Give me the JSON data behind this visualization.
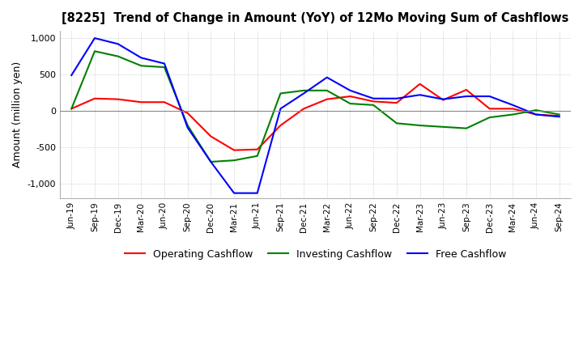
{
  "title": "[8225]  Trend of Change in Amount (YoY) of 12Mo Moving Sum of Cashflows",
  "ylabel": "Amount (million yen)",
  "ylim": [
    -1200,
    1100
  ],
  "yticks": [
    -1000,
    -500,
    0,
    500,
    1000
  ],
  "background_color": "#ffffff",
  "grid_color": "#aaaaaa",
  "x_labels": [
    "Jun-19",
    "Sep-19",
    "Dec-19",
    "Mar-20",
    "Jun-20",
    "Sep-20",
    "Dec-20",
    "Mar-21",
    "Jun-21",
    "Sep-21",
    "Dec-21",
    "Mar-22",
    "Jun-22",
    "Sep-22",
    "Dec-22",
    "Mar-23",
    "Jun-23",
    "Sep-23",
    "Dec-23",
    "Mar-24",
    "Jun-24",
    "Sep-24"
  ],
  "operating_cashflow": [
    30,
    170,
    160,
    120,
    120,
    -30,
    -350,
    -540,
    -530,
    -200,
    30,
    160,
    200,
    130,
    110,
    370,
    150,
    290,
    30,
    30,
    -50,
    -70
  ],
  "investing_cashflow": [
    30,
    820,
    750,
    620,
    600,
    -200,
    -700,
    -680,
    -620,
    240,
    280,
    280,
    100,
    80,
    -170,
    -200,
    -220,
    -240,
    -90,
    -50,
    10,
    -50
  ],
  "free_cashflow": [
    490,
    1000,
    920,
    730,
    650,
    -230,
    -700,
    -1130,
    -1130,
    30,
    240,
    460,
    280,
    170,
    170,
    220,
    160,
    200,
    200,
    80,
    -50,
    -80
  ],
  "operating_color": "#ff0000",
  "investing_color": "#008000",
  "free_color": "#0000ff",
  "line_width": 1.5
}
